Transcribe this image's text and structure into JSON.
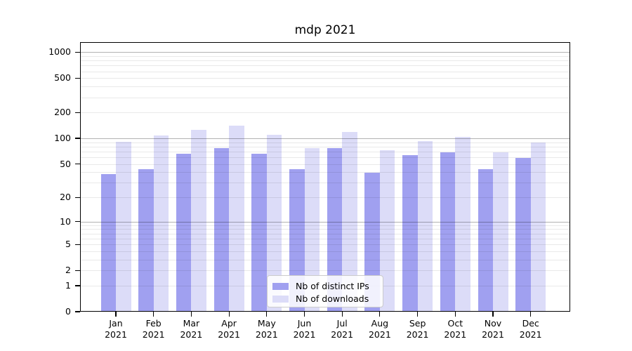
{
  "title": "mdp 2021",
  "chart_data": {
    "type": "bar",
    "title": "mdp 2021",
    "categories": [
      "Jan",
      "Feb",
      "Mar",
      "Apr",
      "May",
      "Jun",
      "Jul",
      "Aug",
      "Sep",
      "Oct",
      "Nov",
      "Dec"
    ],
    "category_year": "2021",
    "series": [
      {
        "name": "Nb of distinct IPs",
        "color": "#a0a0f0",
        "values": [
          39,
          44,
          67,
          78,
          67,
          44,
          78,
          40,
          65,
          70,
          44,
          60
        ]
      },
      {
        "name": "Nb of downloads",
        "color": "#dcdcf8",
        "values": [
          92,
          110,
          128,
          142,
          112,
          78,
          120,
          74,
          94,
          106,
          70,
          91
        ]
      }
    ],
    "y_axis": {
      "scale": "log1p",
      "tick_values": [
        0,
        1,
        2,
        5,
        10,
        20,
        50,
        100,
        200,
        500,
        1000
      ],
      "tick_labels": [
        "0",
        "1",
        "2",
        "5",
        "10",
        "20",
        "50",
        "100",
        "200",
        "500",
        "1000"
      ],
      "major_grid_values": [
        10,
        100,
        1000
      ],
      "minor_grid_values": [
        1,
        2,
        3,
        4,
        5,
        6,
        7,
        8,
        9,
        20,
        30,
        40,
        50,
        60,
        70,
        80,
        90,
        200,
        300,
        400,
        500,
        600,
        700,
        800,
        900
      ]
    },
    "x_axis": {
      "label_lines": 2
    },
    "legend": {
      "position": "lower-center",
      "entries": [
        "Nb of distinct IPs",
        "Nb of downloads"
      ]
    },
    "grid": true,
    "ylim_top_value": 1300
  },
  "colors": {
    "background": "#ffffff",
    "spine": "#000000",
    "major_grid": "#b3b3b3",
    "minor_grid": "#e9e9e9",
    "text": "#000000",
    "legend_border": "#cccccc"
  }
}
